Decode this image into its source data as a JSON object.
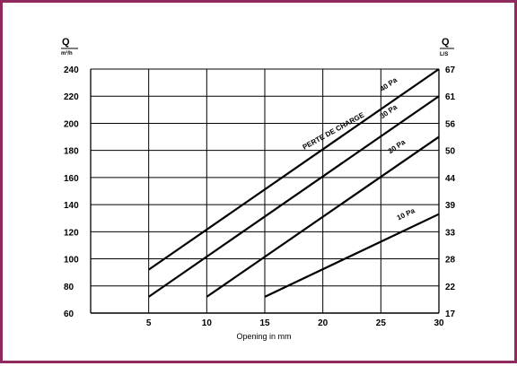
{
  "chart_data": {
    "type": "line",
    "title": "",
    "xlabel": "Opening in mm",
    "ylabel_left": {
      "symbol": "Q",
      "unit": "m³/h"
    },
    "ylabel_right": {
      "symbol": "Q",
      "unit": "L/S"
    },
    "xlim": [
      0,
      30
    ],
    "ylim": [
      60,
      240
    ],
    "x_ticks": [
      5,
      10,
      15,
      20,
      25,
      30
    ],
    "y_ticks_left": [
      60,
      80,
      100,
      120,
      140,
      160,
      180,
      200,
      220,
      240
    ],
    "y_ticks_right": [
      17,
      22,
      28,
      33,
      39,
      44,
      50,
      56,
      61,
      67
    ],
    "grid": true,
    "annotation": "PERTE DE CHARGE",
    "series": [
      {
        "name": "10 Pa",
        "x": [
          15,
          30
        ],
        "y": [
          72,
          133
        ]
      },
      {
        "name": "20 Pa",
        "x": [
          10,
          30
        ],
        "y": [
          72,
          190
        ]
      },
      {
        "name": "30 Pa",
        "x": [
          5,
          30
        ],
        "y": [
          72,
          220
        ]
      },
      {
        "name": "40 Pa",
        "x": [
          5,
          30
        ],
        "y": [
          92,
          240
        ]
      }
    ]
  }
}
